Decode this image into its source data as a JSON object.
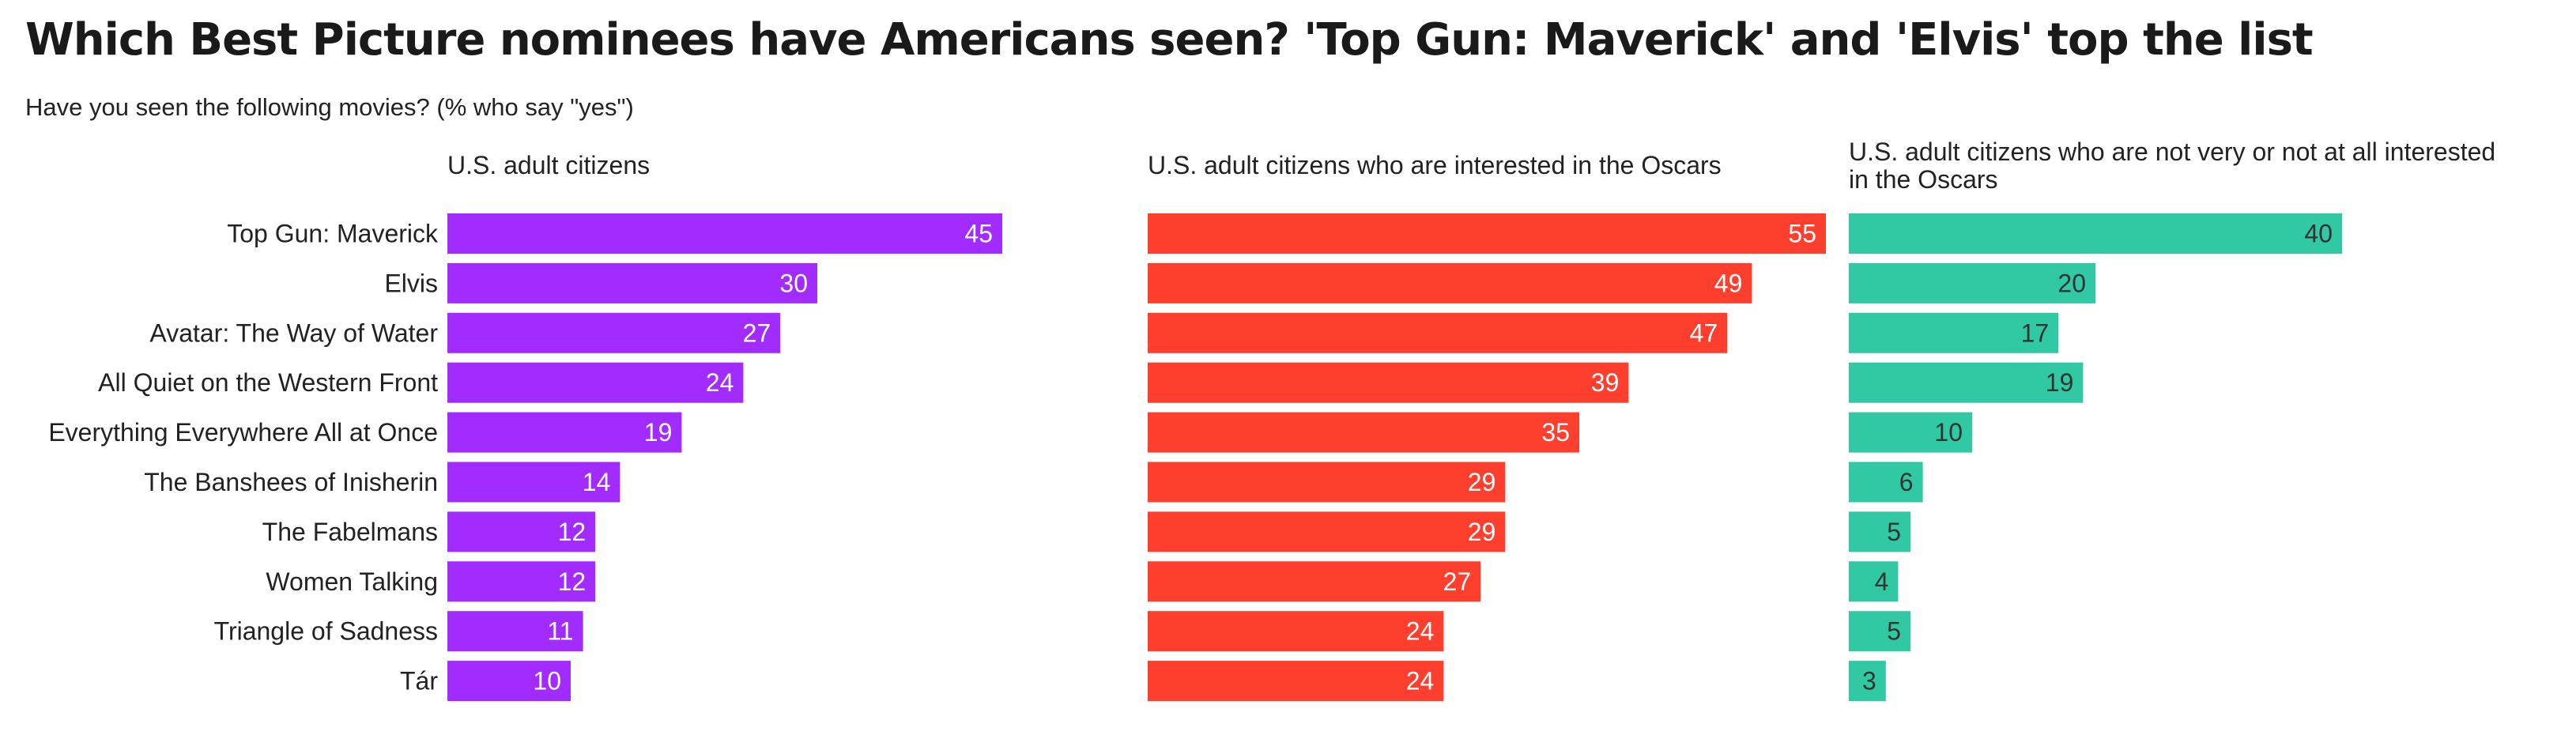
{
  "title": "Which Best Picture nominees have Americans seen? 'Top Gun: Maverick' and 'Elvis' top the list",
  "subtitle": "Have you seen the following movies? (% who say \"yes\")",
  "chart_data": {
    "type": "bar",
    "orientation": "horizontal",
    "grid": false,
    "categories": [
      "Top Gun: Maverick",
      "Elvis",
      "Avatar: The Way of Water",
      "All Quiet on the Western Front",
      "Everything Everywhere All at Once",
      "The Banshees of Inisherin",
      "The Fabelmans",
      "Women Talking",
      "Triangle of Sadness",
      "Tár"
    ],
    "series": [
      {
        "name": "U.S. adult citizens",
        "color": "#a22cff",
        "label_color": "#ffffff",
        "values": [
          45,
          30,
          27,
          24,
          19,
          14,
          12,
          12,
          11,
          10
        ]
      },
      {
        "name": "U.S. adult citizens who are interested in the Oscars",
        "color": "#ff3f2e",
        "label_color": "#ffffff",
        "values": [
          55,
          49,
          47,
          39,
          35,
          29,
          29,
          27,
          24,
          24
        ]
      },
      {
        "name": "U.S. adult citizens who are not very or not at all interested in the Oscars",
        "name_lines": [
          "U.S. adult citizens who are not very or not at all interested",
          "in the Oscars"
        ],
        "color": "#31c9a4",
        "label_color": "#333333",
        "values": [
          40,
          20,
          17,
          19,
          10,
          6,
          5,
          4,
          5,
          3
        ]
      }
    ]
  }
}
